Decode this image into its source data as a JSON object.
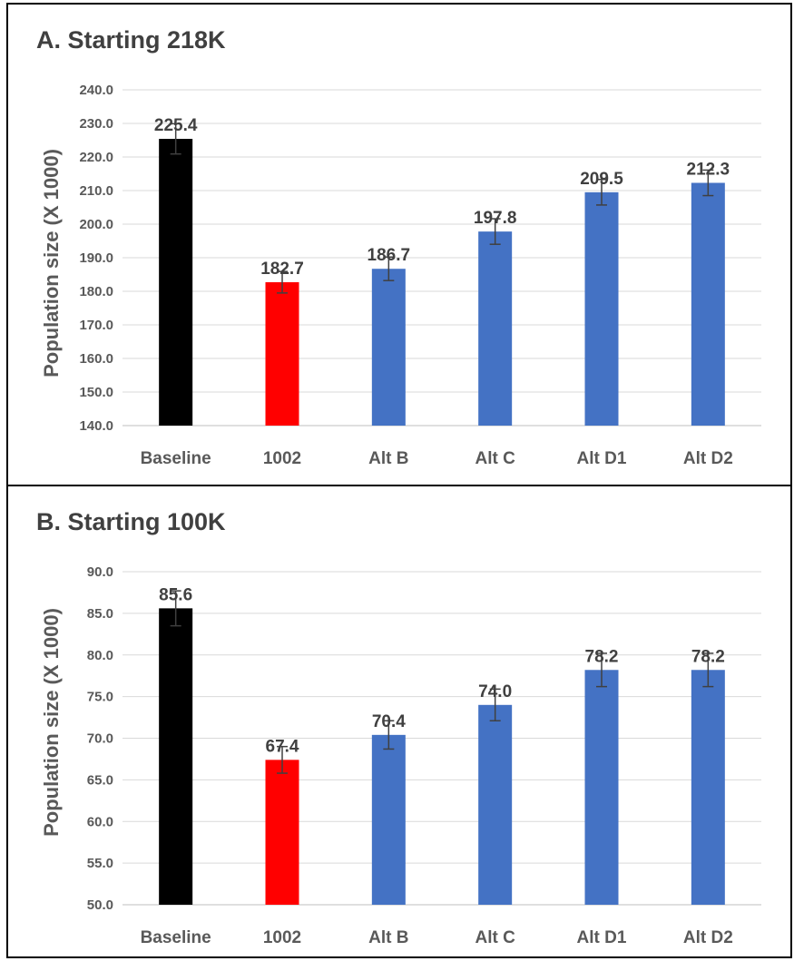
{
  "chart_data": [
    {
      "type": "bar",
      "title": "A. Starting 218K",
      "ylabel": "Population size (X 1000)",
      "xlabel": "",
      "categories": [
        "Baseline",
        "1002",
        "Alt B",
        "Alt C",
        "Alt D1",
        "Alt D2"
      ],
      "values": [
        225.4,
        182.7,
        186.7,
        197.8,
        209.5,
        212.3
      ],
      "value_labels": [
        "225.4",
        "182.7",
        "186.7",
        "197.8",
        "209.5",
        "212.3"
      ],
      "error": [
        4.5,
        3.2,
        3.5,
        3.8,
        3.8,
        3.8
      ],
      "bar_colors": [
        "#000000",
        "#ff0000",
        "#4472c4",
        "#4472c4",
        "#4472c4",
        "#4472c4"
      ],
      "ylim": [
        140,
        240
      ],
      "yticks": [
        "140.0",
        "150.0",
        "160.0",
        "170.0",
        "180.0",
        "190.0",
        "200.0",
        "210.0",
        "220.0",
        "230.0",
        "240.0"
      ],
      "grid": true,
      "legend": "none"
    },
    {
      "type": "bar",
      "title": "B. Starting 100K",
      "ylabel": "Population size (X 1000)",
      "xlabel": "",
      "categories": [
        "Baseline",
        "1002",
        "Alt B",
        "Alt C",
        "Alt D1",
        "Alt D2"
      ],
      "values": [
        85.6,
        67.4,
        70.4,
        74.0,
        78.2,
        78.2
      ],
      "value_labels": [
        "85.6",
        "67.4",
        "70.4",
        "74.0",
        "78.2",
        "78.2"
      ],
      "error": [
        2.1,
        1.6,
        1.7,
        1.9,
        2.0,
        2.0
      ],
      "bar_colors": [
        "#000000",
        "#ff0000",
        "#4472c4",
        "#4472c4",
        "#4472c4",
        "#4472c4"
      ],
      "ylim": [
        50,
        90
      ],
      "yticks": [
        "50.0",
        "55.0",
        "60.0",
        "65.0",
        "70.0",
        "75.0",
        "80.0",
        "85.0",
        "90.0"
      ],
      "grid": true,
      "legend": "none"
    }
  ]
}
